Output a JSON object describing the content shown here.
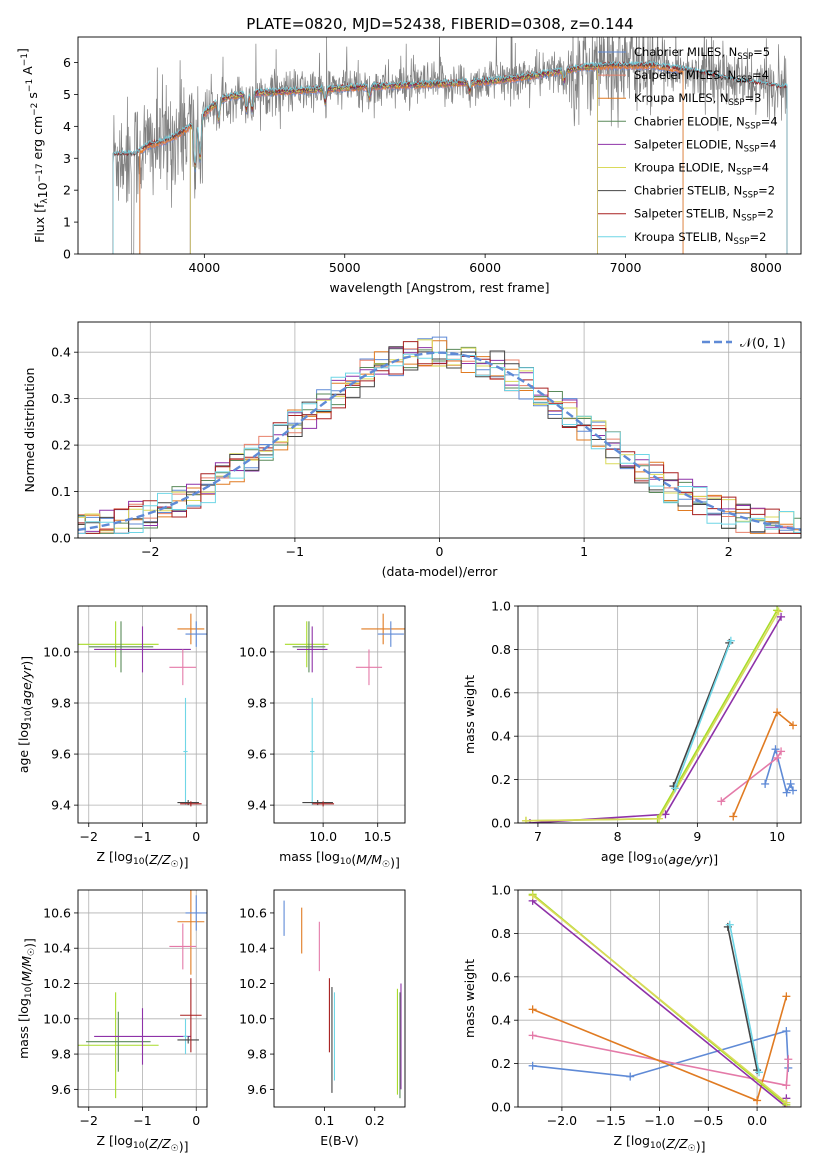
{
  "figure_title": "PLATE=0820, MJD=52438, FIBERID=0308, z=0.144",
  "colors": {
    "chabrier_miles": "#5f8ad6",
    "salpeter_miles": "#e8806a",
    "kroupa_miles": "#e07b22",
    "chabrier_elodie": "#5a8a5a",
    "salpeter_elodie": "#8e32a8",
    "kroupa_elodie": "#dada5a",
    "chabrier_stelib": "#444444",
    "salpeter_stelib": "#a82020",
    "kroupa_stelib": "#6fd6e6",
    "pink": "#e47aa8",
    "lime": "#a8dc2a",
    "gaussian": "#5f8ad6",
    "data_gray": "#808080",
    "grid": "#b0b0b0"
  },
  "chart_data": [
    {
      "id": "spectrum",
      "type": "line",
      "title": "PLATE=0820, MJD=52438, FIBERID=0308, z=0.144",
      "xlabel": "wavelength [Angstrom, rest frame]",
      "ylabel": "Flux [f_λ 10⁻¹⁷ erg cm⁻² s⁻¹ A⁻¹]",
      "xlim": [
        3100,
        8250
      ],
      "ylim": [
        0,
        6.8
      ],
      "xticks": [
        4000,
        5000,
        6000,
        7000,
        8000
      ],
      "yticks": [
        0,
        1,
        2,
        3,
        4,
        5,
        6
      ],
      "grid": false,
      "legend_position": "top-right",
      "legend": [
        {
          "label": "Chabrier MILES, N",
          "sub": "SSP",
          "tail": "=5",
          "color": "chabrier_miles"
        },
        {
          "label": "Salpeter MILES, N",
          "sub": "SSP",
          "tail": "=4",
          "color": "salpeter_miles"
        },
        {
          "label": "Kroupa MILES, N",
          "sub": "SSP",
          "tail": "=3",
          "color": "kroupa_miles"
        },
        {
          "label": "Chabrier ELODIE, N",
          "sub": "SSP",
          "tail": "=4",
          "color": "chabrier_elodie"
        },
        {
          "label": "Salpeter ELODIE, N",
          "sub": "SSP",
          "tail": "=4",
          "color": "salpeter_elodie"
        },
        {
          "label": "Kroupa ELODIE, N",
          "sub": "SSP",
          "tail": "=4",
          "color": "kroupa_elodie"
        },
        {
          "label": "Chabrier STELIB, N",
          "sub": "SSP",
          "tail": "=2",
          "color": "chabrier_stelib"
        },
        {
          "label": "Salpeter STELIB, N",
          "sub": "SSP",
          "tail": "=2",
          "color": "salpeter_stelib"
        },
        {
          "label": "Kroupa STELIB, N",
          "sub": "SSP",
          "tail": "=2",
          "color": "kroupa_stelib"
        }
      ],
      "continuum": [
        [
          3350,
          3.1
        ],
        [
          3500,
          3.1
        ],
        [
          3600,
          3.4
        ],
        [
          3700,
          3.5
        ],
        [
          3800,
          3.7
        ],
        [
          3900,
          4.0
        ],
        [
          4000,
          4.4
        ],
        [
          4100,
          4.8
        ],
        [
          4200,
          4.95
        ],
        [
          4400,
          5.05
        ],
        [
          4600,
          5.1
        ],
        [
          4800,
          5.15
        ],
        [
          5000,
          5.2
        ],
        [
          5200,
          5.25
        ],
        [
          5500,
          5.3
        ],
        [
          5800,
          5.35
        ],
        [
          6000,
          5.4
        ],
        [
          6300,
          5.55
        ],
        [
          6500,
          5.7
        ],
        [
          6700,
          5.85
        ],
        [
          6900,
          5.9
        ],
        [
          7200,
          5.9
        ],
        [
          7500,
          5.7
        ],
        [
          7800,
          5.4
        ],
        [
          8000,
          5.3
        ],
        [
          8100,
          5.2
        ]
      ],
      "model_ranges": {
        "miles": [
          3540,
          7410
        ],
        "elodie": [
          3900,
          6800
        ],
        "stelib": [
          3350,
          8150
        ]
      },
      "data_range": [
        3350,
        8150
      ]
    },
    {
      "id": "residuals",
      "type": "area",
      "xlabel": "(data-model)/error",
      "ylabel": "Normed distribution",
      "xlim": [
        -2.5,
        2.5
      ],
      "ylim": [
        0,
        0.465
      ],
      "xticks": [
        -2,
        -1,
        0,
        1,
        2
      ],
      "yticks": [
        0.0,
        0.1,
        0.2,
        0.3,
        0.4
      ],
      "grid": true,
      "legend_position": "top-right",
      "legend": [
        {
          "label": "𝒩(0, 1)",
          "color": "gaussian"
        }
      ],
      "bin_width": 0.1
    },
    {
      "id": "age_vs_z",
      "type": "scatter",
      "xlabel": "Z [log₁₀(Z/Z☉)]",
      "ylabel": "age  [log₁₀(age/yr)]",
      "xlim": [
        -2.2,
        0.2
      ],
      "ylim": [
        9.33,
        10.18
      ],
      "xticks": [
        -2,
        -1,
        0
      ],
      "yticks": [
        9.4,
        9.6,
        9.8,
        10.0
      ],
      "grid": true,
      "crosses": [
        {
          "x": -1.5,
          "xe": 0.8,
          "y": 10.03,
          "ye": 0.09,
          "color": "lime"
        },
        {
          "x": -1.4,
          "xe": 0.6,
          "y": 10.02,
          "ye": 0.1,
          "color": "chabrier_elodie"
        },
        {
          "x": -1.0,
          "xe": 0.9,
          "y": 10.01,
          "ye": 0.09,
          "color": "salpeter_elodie"
        },
        {
          "x": -0.1,
          "xe": 0.25,
          "y": 10.09,
          "ye": 0.06,
          "color": "kroupa_miles"
        },
        {
          "x": 0.0,
          "xe": 0.2,
          "y": 10.07,
          "ye": 0.05,
          "color": "chabrier_miles"
        },
        {
          "x": -0.25,
          "xe": 0.25,
          "y": 9.94,
          "ye": 0.07,
          "color": "pink"
        },
        {
          "x": -0.2,
          "xe": 0.04,
          "y": 9.61,
          "ye": 0.21,
          "color": "kroupa_stelib"
        },
        {
          "x": -0.15,
          "xe": 0.2,
          "y": 9.41,
          "ye": 0.01,
          "color": "chabrier_stelib"
        },
        {
          "x": -0.1,
          "xe": 0.2,
          "y": 9.405,
          "ye": 0.01,
          "color": "salpeter_stelib"
        }
      ]
    },
    {
      "id": "age_vs_mass",
      "type": "scatter",
      "xlabel": "mass [log₁₀(M/M☉)]",
      "ylabel": "",
      "xlim": [
        9.55,
        10.75
      ],
      "ylim": [
        9.33,
        10.18
      ],
      "xticks": [
        10.0,
        10.5
      ],
      "yticks": [
        9.4,
        9.6,
        9.8,
        10.0
      ],
      "grid": true,
      "crosses": [
        {
          "x": 9.85,
          "xe": 0.2,
          "y": 10.03,
          "ye": 0.09,
          "color": "lime"
        },
        {
          "x": 9.87,
          "xe": 0.15,
          "y": 10.02,
          "ye": 0.1,
          "color": "chabrier_elodie"
        },
        {
          "x": 9.9,
          "xe": 0.14,
          "y": 10.01,
          "ye": 0.09,
          "color": "salpeter_elodie"
        },
        {
          "x": 10.55,
          "xe": 0.2,
          "y": 10.09,
          "ye": 0.06,
          "color": "kroupa_miles"
        },
        {
          "x": 10.62,
          "xe": 0.12,
          "y": 10.07,
          "ye": 0.05,
          "color": "chabrier_miles"
        },
        {
          "x": 10.42,
          "xe": 0.12,
          "y": 9.94,
          "ye": 0.07,
          "color": "pink"
        },
        {
          "x": 9.9,
          "xe": 0.02,
          "y": 9.61,
          "ye": 0.21,
          "color": "kroupa_stelib"
        },
        {
          "x": 9.95,
          "xe": 0.14,
          "y": 9.41,
          "ye": 0.01,
          "color": "chabrier_stelib"
        },
        {
          "x": 10.0,
          "xe": 0.1,
          "y": 9.405,
          "ye": 0.01,
          "color": "salpeter_stelib"
        }
      ]
    },
    {
      "id": "weight_vs_age",
      "type": "line",
      "xlabel": "age  [log₁₀(age/yr)]",
      "ylabel": "mass weight",
      "xlim": [
        6.75,
        10.3
      ],
      "ylim": [
        0.0,
        1.0
      ],
      "xticks": [
        7,
        8,
        9,
        10
      ],
      "yticks": [
        0.0,
        0.2,
        0.4,
        0.6,
        0.8,
        1.0
      ],
      "grid": true,
      "series": [
        {
          "color": "chabrier_miles",
          "x": [
            9.85,
            9.98,
            10.12,
            10.17,
            10.2
          ],
          "y": [
            0.18,
            0.34,
            0.14,
            0.18,
            0.15
          ]
        },
        {
          "color": "pink",
          "x": [
            9.3,
            10.0,
            10.05
          ],
          "y": [
            0.1,
            0.3,
            0.33
          ]
        },
        {
          "color": "kroupa_miles",
          "x": [
            9.45,
            10.0,
            10.2
          ],
          "y": [
            0.03,
            0.51,
            0.45
          ]
        },
        {
          "color": "salpeter_elodie",
          "x": [
            6.9,
            8.6,
            10.05
          ],
          "y": [
            0.0,
            0.04,
            0.95
          ]
        },
        {
          "color": "lime",
          "x": [
            6.85,
            8.5,
            10.0
          ],
          "y": [
            0.01,
            0.02,
            0.98
          ]
        },
        {
          "color": "kroupa_elodie",
          "x": [
            6.85,
            8.52,
            10.02
          ],
          "y": [
            0.01,
            0.02,
            0.975
          ]
        },
        {
          "color": "chabrier_stelib",
          "x": [
            8.7,
            9.4
          ],
          "y": [
            0.17,
            0.83
          ]
        },
        {
          "color": "kroupa_stelib",
          "x": [
            8.72,
            9.42
          ],
          "y": [
            0.16,
            0.84
          ]
        }
      ]
    },
    {
      "id": "mass_vs_z",
      "type": "scatter",
      "xlabel": "Z [log₁₀(Z/Z☉)]",
      "ylabel": "mass [log₁₀(M/M☉)]",
      "xlim": [
        -2.2,
        0.2
      ],
      "ylim": [
        9.5,
        10.73
      ],
      "xticks": [
        -2,
        -1,
        0
      ],
      "yticks": [
        9.6,
        9.8,
        10.0,
        10.2,
        10.4,
        10.6
      ],
      "grid": true,
      "crosses": [
        {
          "x": -1.5,
          "xe": 0.8,
          "y": 9.85,
          "ye": 0.3,
          "color": "lime"
        },
        {
          "x": -1.45,
          "xe": 0.6,
          "y": 9.87,
          "ye": 0.17,
          "color": "chabrier_elodie"
        },
        {
          "x": -1.0,
          "xe": 0.9,
          "y": 9.9,
          "ye": 0.16,
          "color": "salpeter_elodie"
        },
        {
          "x": -0.1,
          "xe": 0.25,
          "y": 10.55,
          "ye": 0.3,
          "color": "kroupa_miles"
        },
        {
          "x": 0.0,
          "xe": 0.2,
          "y": 10.6,
          "ye": 0.1,
          "color": "chabrier_miles"
        },
        {
          "x": -0.25,
          "xe": 0.25,
          "y": 10.41,
          "ye": 0.13,
          "color": "pink"
        },
        {
          "x": -0.2,
          "xe": 0.04,
          "y": 9.9,
          "ye": 0.1,
          "color": "kroupa_stelib"
        },
        {
          "x": -0.15,
          "xe": 0.2,
          "y": 9.88,
          "ye": 0.02,
          "color": "chabrier_stelib"
        },
        {
          "x": -0.1,
          "xe": 0.2,
          "y": 10.02,
          "ye": 0.21,
          "color": "salpeter_stelib"
        }
      ]
    },
    {
      "id": "mass_vs_ebv",
      "type": "scatter",
      "xlabel": "E(B-V)",
      "ylabel": "",
      "xlim": [
        0.0,
        0.26
      ],
      "ylim": [
        9.5,
        10.73
      ],
      "xticks": [
        0.1,
        0.2
      ],
      "yticks": [
        9.6,
        9.8,
        10.0,
        10.2,
        10.4,
        10.6
      ],
      "grid": false,
      "crosses": [
        {
          "x": 0.02,
          "xe": 0.0,
          "y": 10.57,
          "ye": 0.1,
          "color": "chabrier_miles"
        },
        {
          "x": 0.055,
          "xe": 0.0,
          "y": 10.5,
          "ye": 0.13,
          "color": "kroupa_miles"
        },
        {
          "x": 0.09,
          "xe": 0.0,
          "y": 10.41,
          "ye": 0.14,
          "color": "pink"
        },
        {
          "x": 0.11,
          "xe": 0.0,
          "y": 10.02,
          "ye": 0.21,
          "color": "salpeter_stelib"
        },
        {
          "x": 0.115,
          "xe": 0.0,
          "y": 9.88,
          "ye": 0.3,
          "color": "chabrier_stelib"
        },
        {
          "x": 0.12,
          "xe": 0.0,
          "y": 9.9,
          "ye": 0.25,
          "color": "kroupa_stelib"
        },
        {
          "x": 0.245,
          "xe": 0.0,
          "y": 9.87,
          "ye": 0.3,
          "color": "lime"
        },
        {
          "x": 0.25,
          "xe": 0.0,
          "y": 9.85,
          "ye": 0.3,
          "color": "chabrier_elodie"
        },
        {
          "x": 0.252,
          "xe": 0.0,
          "y": 9.9,
          "ye": 0.3,
          "color": "salpeter_elodie"
        }
      ]
    },
    {
      "id": "weight_vs_z",
      "type": "line",
      "xlabel": "Z [log₁₀(Z/Z☉)]",
      "ylabel": "mass weight",
      "xlim": [
        -2.45,
        0.45
      ],
      "ylim": [
        0.0,
        1.0
      ],
      "xticks": [
        -2.0,
        -1.5,
        -1.0,
        -0.5,
        0.0
      ],
      "yticks": [
        0.0,
        0.2,
        0.4,
        0.6,
        0.8,
        1.0
      ],
      "grid": true,
      "series": [
        {
          "color": "chabrier_miles",
          "x": [
            -2.3,
            -1.3,
            0.3,
            0.32
          ],
          "y": [
            0.19,
            0.14,
            0.35,
            0.18
          ]
        },
        {
          "color": "pink",
          "x": [
            -2.3,
            0.3,
            0.32
          ],
          "y": [
            0.33,
            0.1,
            0.22
          ]
        },
        {
          "color": "kroupa_miles",
          "x": [
            -2.3,
            0.0,
            0.3
          ],
          "y": [
            0.45,
            0.03,
            0.51
          ]
        },
        {
          "color": "salpeter_elodie",
          "x": [
            -2.3,
            0.3,
            0.3
          ],
          "y": [
            0.95,
            0.0,
            0.04
          ]
        },
        {
          "color": "lime",
          "x": [
            -2.3,
            0.3
          ],
          "y": [
            0.98,
            0.01
          ]
        },
        {
          "color": "kroupa_elodie",
          "x": [
            -2.3,
            0.3
          ],
          "y": [
            0.975,
            0.02
          ]
        },
        {
          "color": "chabrier_stelib",
          "x": [
            -0.3,
            0.0
          ],
          "y": [
            0.83,
            0.17
          ]
        },
        {
          "color": "kroupa_stelib",
          "x": [
            -0.28,
            0.02
          ],
          "y": [
            0.84,
            0.16
          ]
        }
      ]
    }
  ]
}
